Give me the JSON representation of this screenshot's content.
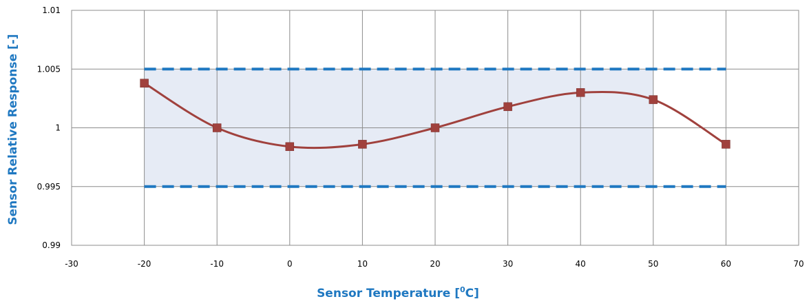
{
  "chart_data": {
    "type": "line",
    "title": "",
    "xlabel": "Sensor Temperature [",
    "xlabel_superscript": "0",
    "xlabel_suffix": "C]",
    "ylabel": "Sensor Relative Response [-]",
    "xlim": [
      -30,
      70
    ],
    "ylim": [
      0.99,
      1.01
    ],
    "x_ticks": [
      -30,
      -20,
      -10,
      0,
      10,
      20,
      30,
      40,
      50,
      60,
      70
    ],
    "x_tick_labels": [
      "-30",
      "-20",
      "-10",
      "0",
      "10",
      "20",
      "30",
      "40",
      "50",
      "60",
      "70"
    ],
    "y_ticks": [
      0.99,
      0.995,
      1.0,
      1.005,
      1.01
    ],
    "y_tick_labels": [
      "0.99",
      "0.995",
      "1",
      "1.005",
      "1.01"
    ],
    "grid": true,
    "legend": "none",
    "series": [
      {
        "x": [
          -20,
          -10,
          0,
          10,
          20,
          30,
          40,
          50,
          60
        ],
        "y": [
          1.0038,
          1.0,
          0.9984,
          0.9986,
          1.0,
          1.0018,
          1.003,
          1.0024,
          0.9986
        ],
        "color": "#a0413d",
        "marker": "square",
        "smooth": true
      }
    ],
    "tolerance_band": {
      "x_range": [
        -20,
        50
      ],
      "upper_line_x": [
        -20,
        60
      ],
      "lower_line_x": [
        -20,
        60
      ],
      "upper": 1.005,
      "lower": 0.995,
      "fill_color": "#e6ebf5",
      "line_color": "#1f78c1",
      "line_style": "dashed"
    },
    "colors": {
      "axis_title": "#1f78c1",
      "gridline": "#8c8c8c",
      "plot_border": "#8c8c8c"
    }
  }
}
